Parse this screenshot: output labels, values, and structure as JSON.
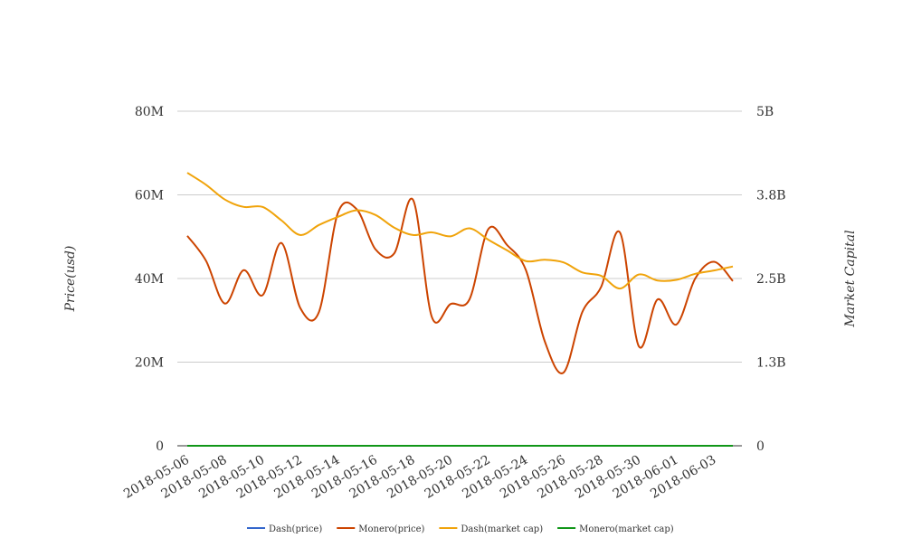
{
  "chart_data": {
    "type": "line",
    "title": "",
    "ylabel": "Price(usd)",
    "y2label": "Market Capital",
    "ylim": [
      0,
      80000000
    ],
    "y2lim": [
      0,
      5000000000
    ],
    "y_ticks": [
      "0",
      "20M",
      "40M",
      "60M",
      "80M"
    ],
    "y2_ticks": [
      "0",
      "1.3B",
      "2.5B",
      "3.8B",
      "5B"
    ],
    "legend_position": "bottom",
    "grid": true,
    "x": [
      "2018-05-06",
      "2018-05-07",
      "2018-05-08",
      "2018-05-09",
      "2018-05-10",
      "2018-05-11",
      "2018-05-12",
      "2018-05-13",
      "2018-05-14",
      "2018-05-15",
      "2018-05-16",
      "2018-05-17",
      "2018-05-18",
      "2018-05-19",
      "2018-05-20",
      "2018-05-21",
      "2018-05-22",
      "2018-05-23",
      "2018-05-24",
      "2018-05-25",
      "2018-05-26",
      "2018-05-27",
      "2018-05-28",
      "2018-05-29",
      "2018-05-30",
      "2018-05-31",
      "2018-06-01",
      "2018-06-02",
      "2018-06-03",
      "2018-06-04"
    ],
    "x_ticks": [
      "2018-05-06",
      "2018-05-08",
      "2018-05-10",
      "2018-05-12",
      "2018-05-14",
      "2018-05-16",
      "2018-05-18",
      "2018-05-20",
      "2018-05-22",
      "2018-05-24",
      "2018-05-26",
      "2018-05-28",
      "2018-05-30",
      "2018-06-01",
      "2018-06-03"
    ],
    "series": [
      {
        "name": "Dash(price)",
        "axis": "left",
        "color": "#3366cc",
        "values": [
          0,
          0,
          0,
          0,
          0,
          0,
          0,
          0,
          0,
          0,
          0,
          0,
          0,
          0,
          0,
          0,
          0,
          0,
          0,
          0,
          0,
          0,
          0,
          0,
          0,
          0,
          0,
          0,
          0,
          0
        ]
      },
      {
        "name": "Monero(price)",
        "axis": "left",
        "color": "#cc4400",
        "values": [
          50200000,
          44200000,
          34000000,
          42000000,
          36000000,
          48500000,
          33000000,
          32000000,
          55600000,
          56600000,
          47000000,
          46000000,
          58800000,
          30800000,
          33900000,
          35000000,
          51800000,
          48000000,
          42000000,
          25000000,
          17500000,
          32000000,
          38000000,
          51000000,
          23800000,
          35000000,
          29000000,
          40000000,
          44000000,
          39400000
        ]
      },
      {
        "name": "Dash(market cap)",
        "axis": "right",
        "color": "#f0a30a",
        "values": [
          4080000000,
          3900000000,
          3680000000,
          3570000000,
          3570000000,
          3370000000,
          3150000000,
          3300000000,
          3420000000,
          3520000000,
          3450000000,
          3260000000,
          3150000000,
          3190000000,
          3130000000,
          3250000000,
          3080000000,
          2920000000,
          2760000000,
          2780000000,
          2740000000,
          2590000000,
          2540000000,
          2350000000,
          2560000000,
          2470000000,
          2480000000,
          2570000000,
          2620000000,
          2680000000
        ]
      },
      {
        "name": "Monero(market cap)",
        "axis": "right",
        "color": "#109618",
        "values": [
          0,
          0,
          0,
          0,
          0,
          0,
          0,
          0,
          0,
          0,
          0,
          0,
          0,
          0,
          0,
          0,
          0,
          0,
          0,
          0,
          0,
          0,
          0,
          0,
          0,
          0,
          0,
          0,
          0,
          0
        ]
      }
    ]
  }
}
